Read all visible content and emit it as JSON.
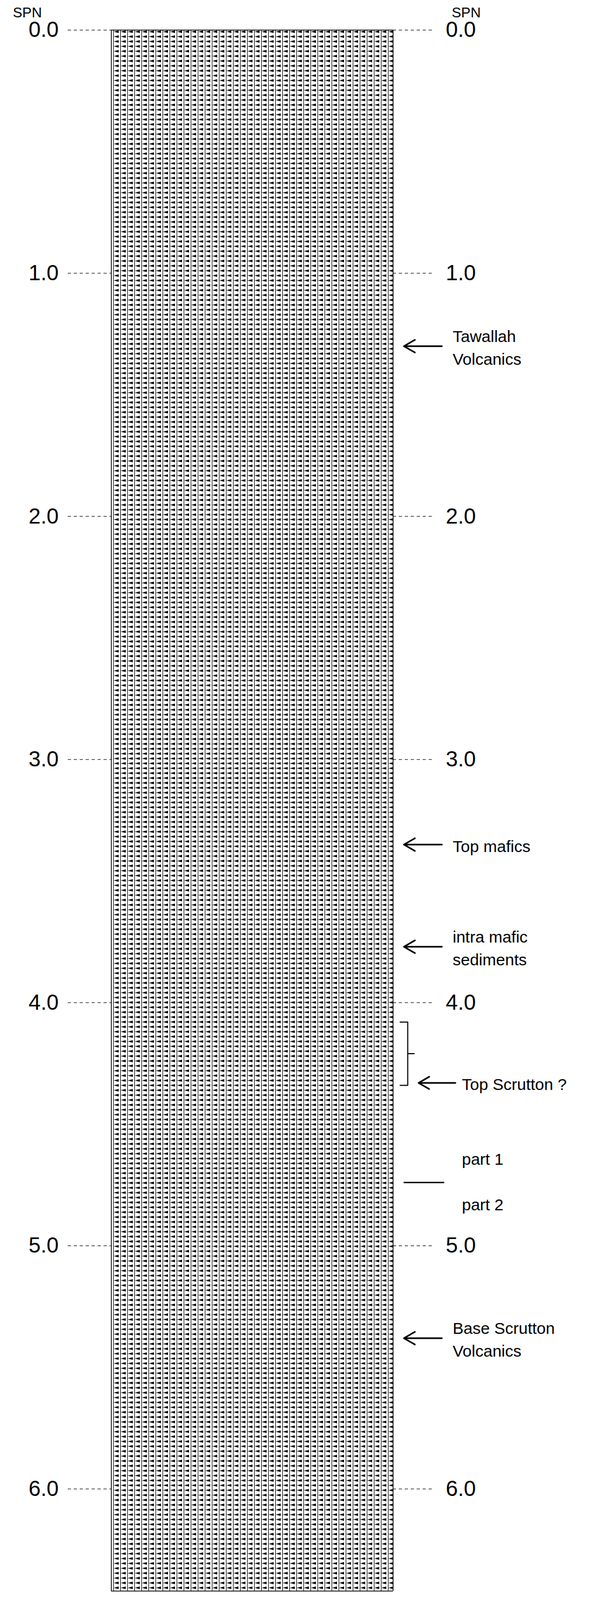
{
  "chart_data": {
    "type": "seismic_section",
    "ylabel": "SPN",
    "ylim": [
      0,
      6.42
    ],
    "yticks": [
      {
        "value": 0,
        "label": "0.0"
      },
      {
        "value": 1,
        "label": "1.0"
      },
      {
        "value": 2,
        "label": "2.0"
      },
      {
        "value": 3,
        "label": "3.0"
      },
      {
        "value": 4,
        "label": "4.0"
      },
      {
        "value": 5,
        "label": "5.0"
      },
      {
        "value": 6,
        "label": "6.0"
      }
    ],
    "grid": true,
    "annotations": [
      {
        "lines": [
          "Tawallah",
          "Volcanics"
        ],
        "time": 1.3
      },
      {
        "lines": [
          "Top mafics"
        ],
        "time": 3.35
      },
      {
        "lines": [
          "intra mafic",
          "sediments"
        ],
        "time": 3.77
      },
      {
        "lines": [
          "Top Scrutton ?"
        ],
        "time": 4.33,
        "bracket": [
          4.08,
          4.34
        ]
      },
      {
        "lines": [
          "Base Scrutton",
          "Volcanics"
        ],
        "time": 5.38
      }
    ],
    "divider": {
      "time": 4.74,
      "above": "part 1",
      "below": "part 2"
    }
  }
}
